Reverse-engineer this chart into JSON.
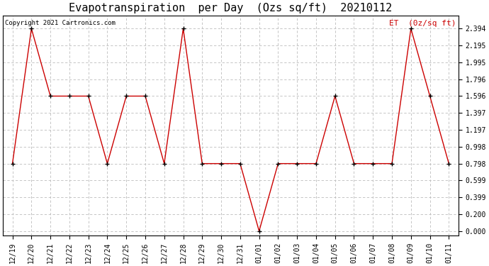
{
  "title": "Evapotranspiration  per Day  (Ozs sq/ft)  20210112",
  "legend_label": "ET  (0z/sq ft)",
  "copyright": "Copyright 2021 Cartronics.com",
  "x_labels": [
    "12/19",
    "12/20",
    "12/21",
    "12/22",
    "12/23",
    "12/24",
    "12/25",
    "12/26",
    "12/27",
    "12/28",
    "12/29",
    "12/30",
    "12/31",
    "01/01",
    "01/02",
    "01/03",
    "01/04",
    "01/05",
    "01/06",
    "01/07",
    "01/08",
    "01/09",
    "01/10",
    "01/11"
  ],
  "y_values": [
    0.798,
    2.394,
    1.596,
    1.596,
    1.596,
    0.798,
    1.596,
    1.596,
    0.798,
    2.394,
    0.798,
    0.798,
    0.798,
    0.0,
    0.798,
    0.798,
    0.798,
    1.596,
    0.798,
    0.798,
    0.798,
    2.394,
    1.596,
    0.798
  ],
  "y_ticks": [
    0.0,
    0.2,
    0.399,
    0.599,
    0.798,
    0.998,
    1.197,
    1.397,
    1.596,
    1.796,
    1.995,
    2.195,
    2.394
  ],
  "y_lim": [
    -0.05,
    2.55
  ],
  "line_color": "#cc0000",
  "marker_color": "#000000",
  "background_color": "#ffffff",
  "grid_color": "#bbbbbb",
  "title_fontsize": 11,
  "tick_fontsize": 7,
  "legend_color": "#cc0000",
  "copyright_color": "#000000",
  "copyright_fontsize": 6.5,
  "legend_fontsize": 8
}
